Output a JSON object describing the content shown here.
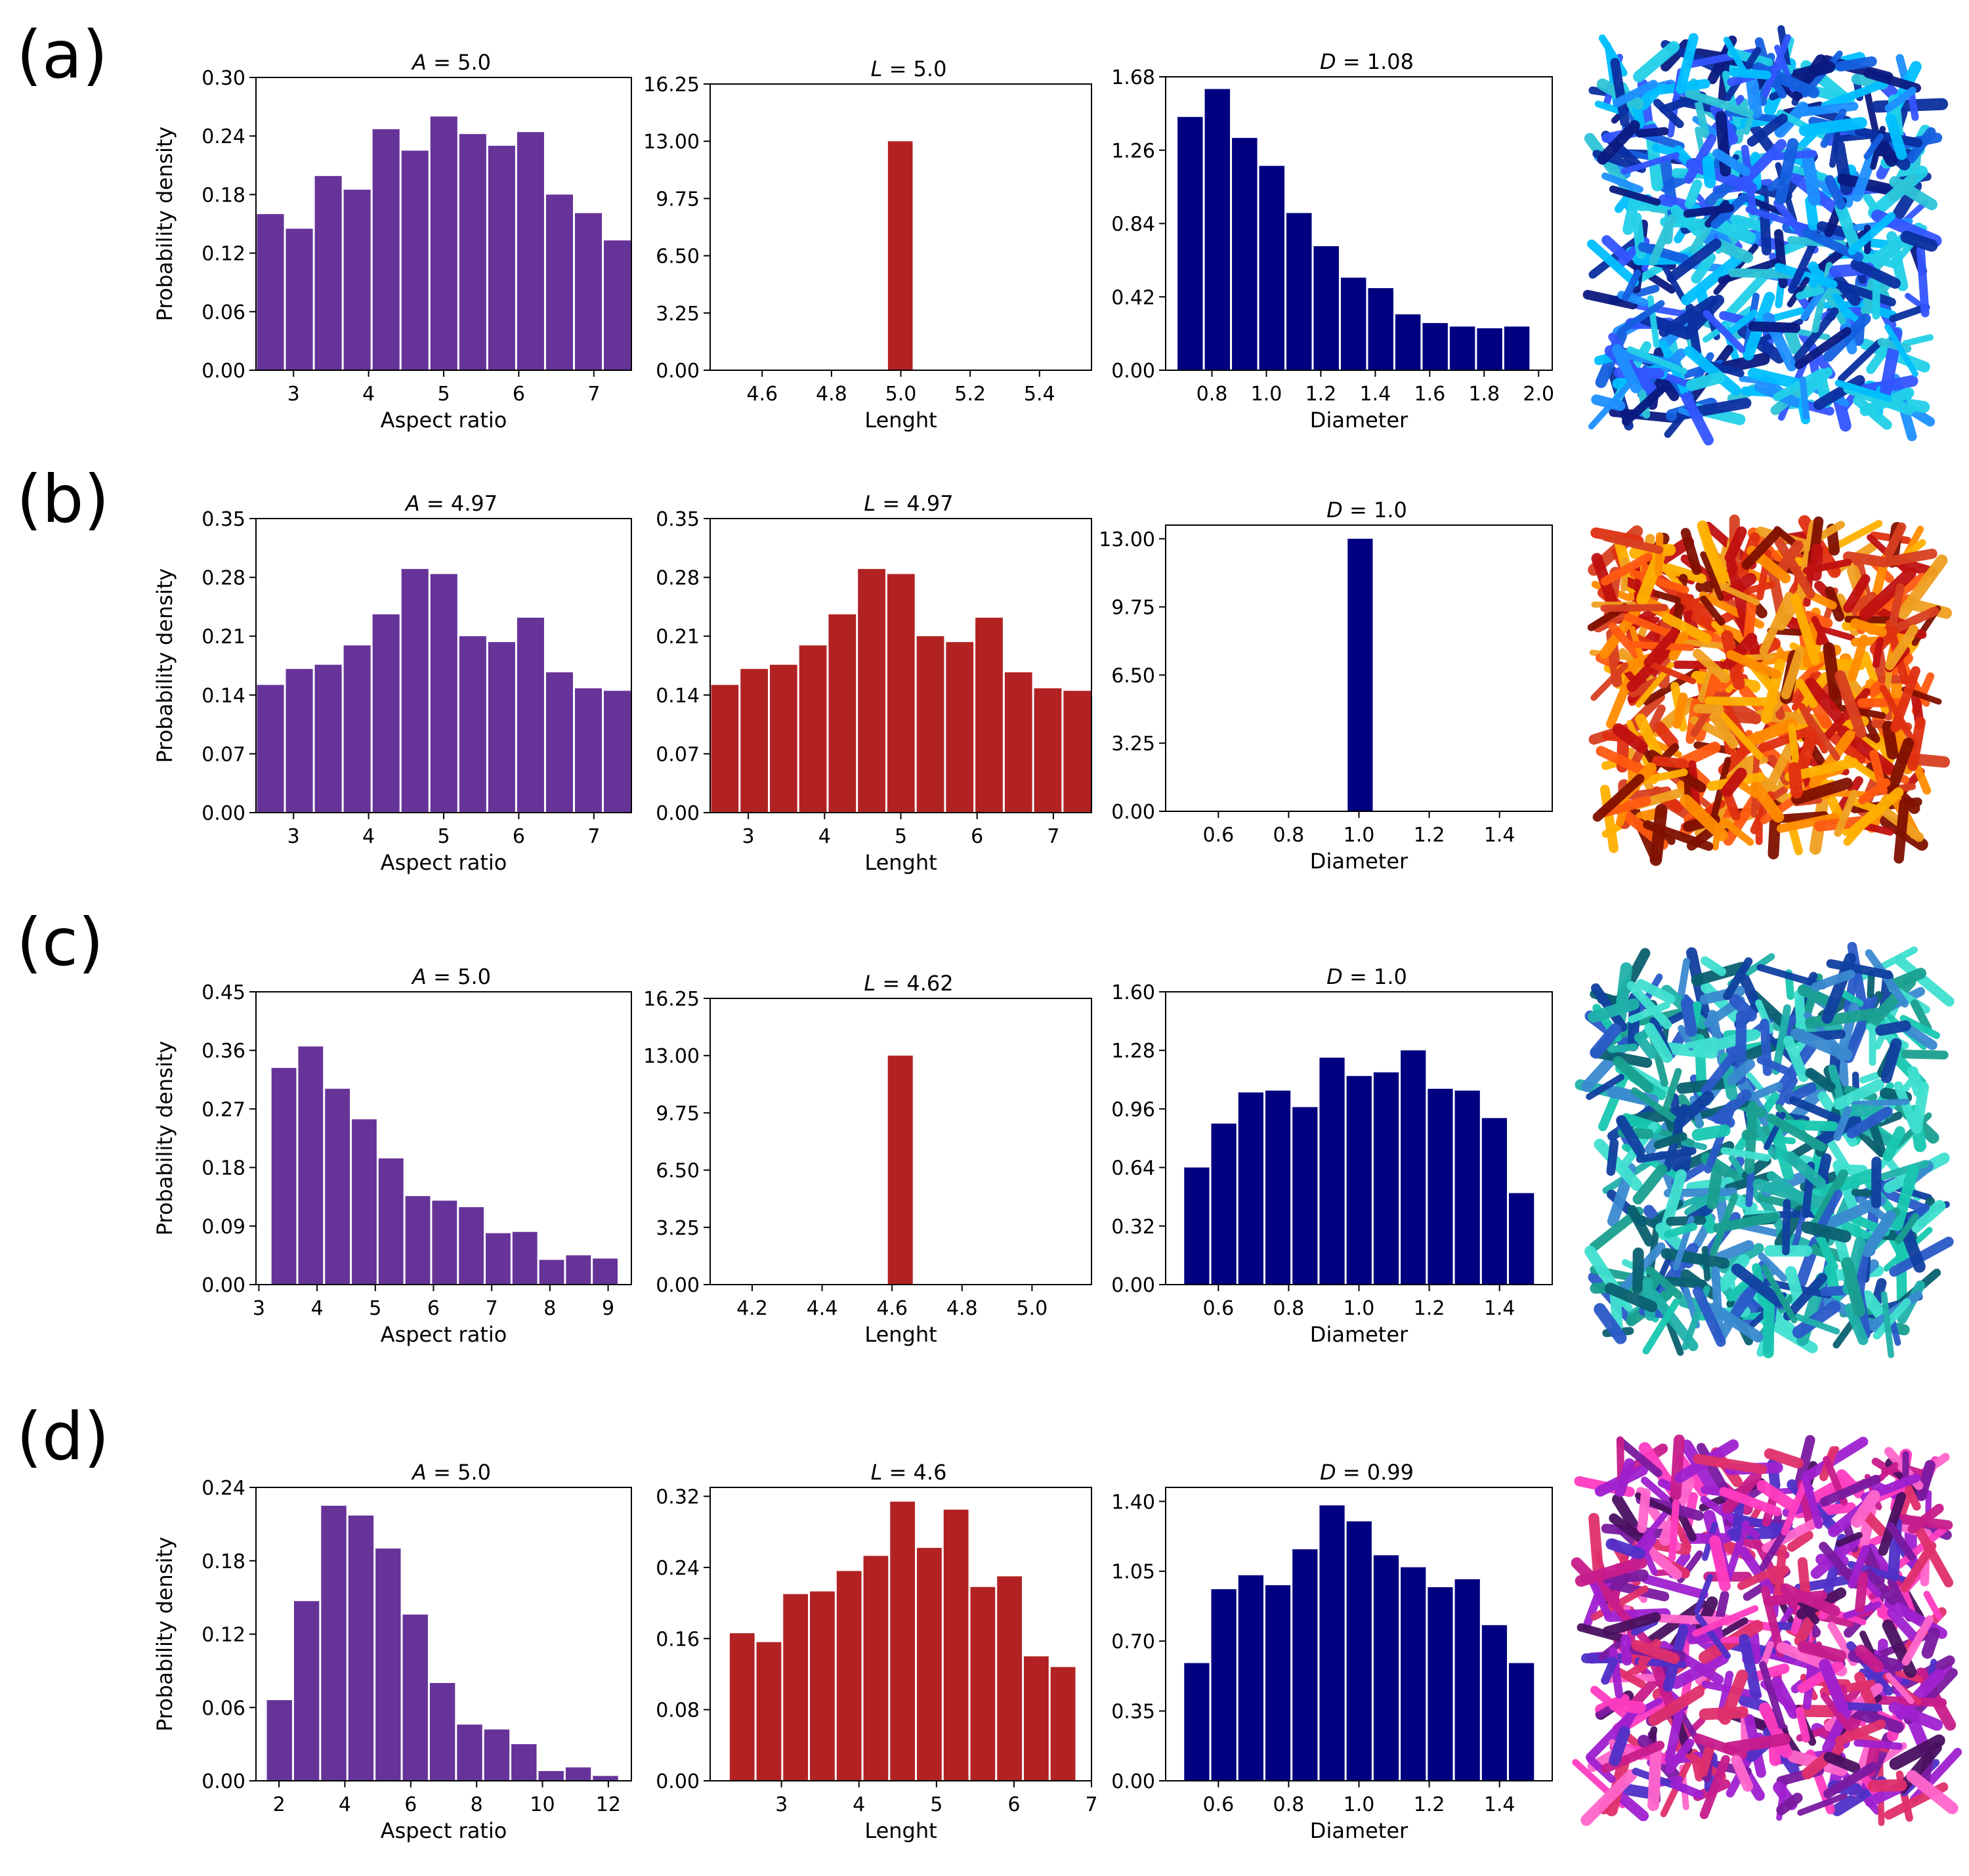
{
  "colors": {
    "aspect": "#663399",
    "length": "#b22222",
    "diameter": "#000080"
  },
  "rows": [
    {
      "label": "(a)",
      "render": "blue-cyan rod packing",
      "charts": [
        {
          "type": "bar",
          "symbol": "A",
          "title": "= 5.0",
          "xlabel": "Aspect ratio",
          "ylabel": "Probability density",
          "xlim": [
            2.5,
            7.5
          ],
          "ylim": [
            0,
            0.3
          ],
          "xticks": [
            3,
            4,
            5,
            6,
            7
          ],
          "xtick_labels": [
            "3",
            "4",
            "5",
            "6",
            "7"
          ],
          "yticks": [
            0,
            0.06,
            0.12,
            0.18,
            0.24,
            0.3
          ],
          "ytick_labels": [
            "0.00",
            "0.06",
            "0.12",
            "0.18",
            "0.24",
            "0.30"
          ],
          "bin_start": 2.5,
          "bin_width": 0.385,
          "values": [
            0.16,
            0.145,
            0.199,
            0.185,
            0.247,
            0.225,
            0.26,
            0.242,
            0.23,
            0.244,
            0.18,
            0.161,
            0.133
          ]
        },
        {
          "type": "bar",
          "symbol": "L",
          "title": "= 5.0",
          "xlabel": "Lenght",
          "ylabel": "",
          "xlim": [
            4.45,
            5.55
          ],
          "ylim": [
            0,
            16.25
          ],
          "xticks": [
            4.6,
            4.8,
            5.0,
            5.2,
            5.4
          ],
          "xtick_labels": [
            "4.6",
            "4.8",
            "5.0",
            "5.2",
            "5.4"
          ],
          "yticks": [
            0,
            3.25,
            6.5,
            9.75,
            13.0,
            16.25
          ],
          "ytick_labels": [
            "0.00",
            "3.25",
            "6.50",
            "9.75",
            "13.00",
            "16.25"
          ],
          "bin_start": 4.96,
          "bin_width": 0.077,
          "values": [
            13.0
          ]
        },
        {
          "type": "bar",
          "symbol": "D",
          "title": "= 1.08",
          "xlabel": "Diameter",
          "ylabel": "",
          "xlim": [
            0.63,
            2.05
          ],
          "ylim": [
            0,
            1.68
          ],
          "xticks": [
            0.8,
            1.0,
            1.2,
            1.4,
            1.6,
            1.8,
            2.0
          ],
          "xtick_labels": [
            "0.8",
            "1.0",
            "1.2",
            "1.4",
            "1.6",
            "1.8",
            "2.0"
          ],
          "yticks": [
            0,
            0.42,
            0.84,
            1.26,
            1.68
          ],
          "ytick_labels": [
            "0.00",
            "0.42",
            "0.84",
            "1.26",
            "1.68"
          ],
          "bin_start": 0.67,
          "bin_width": 0.1,
          "values": [
            1.45,
            1.61,
            1.33,
            1.17,
            0.9,
            0.71,
            0.53,
            0.47,
            0.32,
            0.27,
            0.25,
            0.24,
            0.25
          ]
        }
      ]
    },
    {
      "label": "(b)",
      "render": "red-orange rod packing",
      "charts": [
        {
          "type": "bar",
          "symbol": "A",
          "title": "= 4.97",
          "xlabel": "Aspect ratio",
          "ylabel": "Probability density",
          "xlim": [
            2.5,
            7.5
          ],
          "ylim": [
            0,
            0.35
          ],
          "xticks": [
            3,
            4,
            5,
            6,
            7
          ],
          "xtick_labels": [
            "3",
            "4",
            "5",
            "6",
            "7"
          ],
          "yticks": [
            0,
            0.07,
            0.14,
            0.21,
            0.28,
            0.35
          ],
          "ytick_labels": [
            "0.00",
            "0.07",
            "0.14",
            "0.21",
            "0.28",
            "0.35"
          ],
          "bin_start": 2.5,
          "bin_width": 0.385,
          "values": [
            0.152,
            0.171,
            0.176,
            0.199,
            0.236,
            0.29,
            0.284,
            0.21,
            0.203,
            0.232,
            0.167,
            0.148,
            0.145
          ]
        },
        {
          "type": "bar",
          "symbol": "L",
          "title": "= 4.97",
          "xlabel": "Lenght",
          "ylabel": "",
          "xlim": [
            2.5,
            7.5
          ],
          "ylim": [
            0,
            0.35
          ],
          "xticks": [
            3,
            4,
            5,
            6,
            7
          ],
          "xtick_labels": [
            "3",
            "4",
            "5",
            "6",
            "7"
          ],
          "yticks": [
            0,
            0.07,
            0.14,
            0.21,
            0.28,
            0.35
          ],
          "ytick_labels": [
            "0.00",
            "0.07",
            "0.14",
            "0.21",
            "0.28",
            "0.35"
          ],
          "bin_start": 2.5,
          "bin_width": 0.385,
          "values": [
            0.152,
            0.171,
            0.176,
            0.199,
            0.236,
            0.29,
            0.284,
            0.21,
            0.203,
            0.232,
            0.167,
            0.148,
            0.145
          ]
        },
        {
          "type": "bar",
          "symbol": "D",
          "title": "= 1.0",
          "xlabel": "Diameter",
          "ylabel": "",
          "xlim": [
            0.45,
            1.55
          ],
          "ylim": [
            0,
            13.65
          ],
          "xticks": [
            0.6,
            0.8,
            1.0,
            1.2,
            1.4
          ],
          "xtick_labels": [
            "0.6",
            "0.8",
            "1.0",
            "1.2",
            "1.4"
          ],
          "yticks": [
            0,
            3.25,
            6.5,
            9.75,
            13.0
          ],
          "ytick_labels": [
            "0.00",
            "3.25",
            "6.50",
            "9.75",
            "13.00"
          ],
          "bin_start": 0.965,
          "bin_width": 0.077,
          "values": [
            13.0
          ]
        }
      ]
    },
    {
      "label": "(c)",
      "render": "teal-blue rod packing",
      "charts": [
        {
          "type": "bar",
          "symbol": "A",
          "title": "= 5.0",
          "xlabel": "Aspect ratio",
          "ylabel": "Probability density",
          "xlim": [
            2.95,
            9.4
          ],
          "ylim": [
            0,
            0.45
          ],
          "xticks": [
            3,
            4,
            5,
            6,
            7,
            8,
            9
          ],
          "xtick_labels": [
            "3",
            "4",
            "5",
            "6",
            "7",
            "8",
            "9"
          ],
          "yticks": [
            0,
            0.09,
            0.18,
            0.27,
            0.36,
            0.45
          ],
          "ytick_labels": [
            "0.00",
            "0.09",
            "0.18",
            "0.27",
            "0.36",
            "0.45"
          ],
          "bin_start": 3.2,
          "bin_width": 0.46,
          "values": [
            0.333,
            0.366,
            0.301,
            0.254,
            0.194,
            0.136,
            0.129,
            0.119,
            0.079,
            0.081,
            0.038,
            0.045,
            0.04
          ]
        },
        {
          "type": "bar",
          "symbol": "L",
          "title": "= 4.62",
          "xlabel": "Lenght",
          "ylabel": "",
          "xlim": [
            4.08,
            5.17
          ],
          "ylim": [
            0,
            16.25
          ],
          "xticks": [
            4.2,
            4.4,
            4.6,
            4.8,
            5.0
          ],
          "xtick_labels": [
            "4.2",
            "4.4",
            "4.6",
            "4.8",
            "5.0"
          ],
          "yticks": [
            0,
            3.25,
            6.5,
            9.75,
            13.0,
            16.25
          ],
          "ytick_labels": [
            "0.00",
            "3.25",
            "6.50",
            "9.75",
            "13.00",
            "16.25"
          ],
          "bin_start": 4.585,
          "bin_width": 0.077,
          "values": [
            13.0
          ]
        },
        {
          "type": "bar",
          "symbol": "D",
          "title": "= 1.0",
          "xlabel": "Diameter",
          "ylabel": "",
          "xlim": [
            0.45,
            1.55
          ],
          "ylim": [
            0,
            1.6
          ],
          "xticks": [
            0.6,
            0.8,
            1.0,
            1.2,
            1.4
          ],
          "xtick_labels": [
            "0.6",
            "0.8",
            "1.0",
            "1.2",
            "1.4"
          ],
          "yticks": [
            0,
            0.32,
            0.64,
            0.96,
            1.28,
            1.6
          ],
          "ytick_labels": [
            "0.00",
            "0.32",
            "0.64",
            "0.96",
            "1.28",
            "1.60"
          ],
          "bin_start": 0.5,
          "bin_width": 0.077,
          "values": [
            0.64,
            0.88,
            1.05,
            1.06,
            0.97,
            1.24,
            1.14,
            1.16,
            1.28,
            1.07,
            1.06,
            0.91,
            0.5
          ]
        }
      ]
    },
    {
      "label": "(d)",
      "render": "magenta-purple rod packing",
      "charts": [
        {
          "type": "bar",
          "symbol": "A",
          "title": "= 5.0",
          "xlabel": "Aspect ratio",
          "ylabel": "Probability density",
          "xlim": [
            1.3,
            12.7
          ],
          "ylim": [
            0,
            0.24
          ],
          "xticks": [
            2,
            4,
            6,
            8,
            10,
            12
          ],
          "xtick_labels": [
            "2",
            "4",
            "6",
            "8",
            "10",
            "12"
          ],
          "yticks": [
            0,
            0.06,
            0.12,
            0.18,
            0.24
          ],
          "ytick_labels": [
            "0.00",
            "0.06",
            "0.12",
            "0.18",
            "0.24"
          ],
          "bin_start": 1.6,
          "bin_width": 0.825,
          "values": [
            0.066,
            0.147,
            0.225,
            0.217,
            0.19,
            0.136,
            0.08,
            0.046,
            0.042,
            0.03,
            0.008,
            0.011,
            0.004
          ]
        },
        {
          "type": "bar",
          "symbol": "L",
          "title": "= 4.6",
          "xlabel": "Lenght",
          "ylabel": "",
          "xlim": [
            2.08,
            7.0
          ],
          "ylim": [
            0,
            0.33
          ],
          "xticks": [
            3,
            4,
            5,
            6,
            7
          ],
          "xtick_labels": [
            "3",
            "4",
            "5",
            "6",
            "7"
          ],
          "yticks": [
            0,
            0.08,
            0.16,
            0.24,
            0.32
          ],
          "ytick_labels": [
            "0.00",
            "0.08",
            "0.16",
            "0.24",
            "0.32"
          ],
          "bin_start": 2.32,
          "bin_width": 0.345,
          "values": [
            0.166,
            0.156,
            0.21,
            0.213,
            0.236,
            0.253,
            0.314,
            0.262,
            0.305,
            0.218,
            0.23,
            0.14,
            0.128
          ]
        },
        {
          "type": "bar",
          "symbol": "D",
          "title": "= 0.99",
          "xlabel": "Diameter",
          "ylabel": "",
          "xlim": [
            0.45,
            1.55
          ],
          "ylim": [
            0,
            1.47
          ],
          "xticks": [
            0.6,
            0.8,
            1.0,
            1.2,
            1.4
          ],
          "xtick_labels": [
            "0.6",
            "0.8",
            "1.0",
            "1.2",
            "1.4"
          ],
          "yticks": [
            0,
            0.35,
            0.7,
            1.05,
            1.4
          ],
          "ytick_labels": [
            "0.00",
            "0.35",
            "0.70",
            "1.05",
            "1.40"
          ],
          "bin_start": 0.5,
          "bin_width": 0.077,
          "values": [
            0.59,
            0.96,
            1.03,
            0.98,
            1.16,
            1.38,
            1.3,
            1.13,
            1.07,
            0.97,
            1.01,
            0.78,
            0.59
          ]
        }
      ]
    }
  ]
}
